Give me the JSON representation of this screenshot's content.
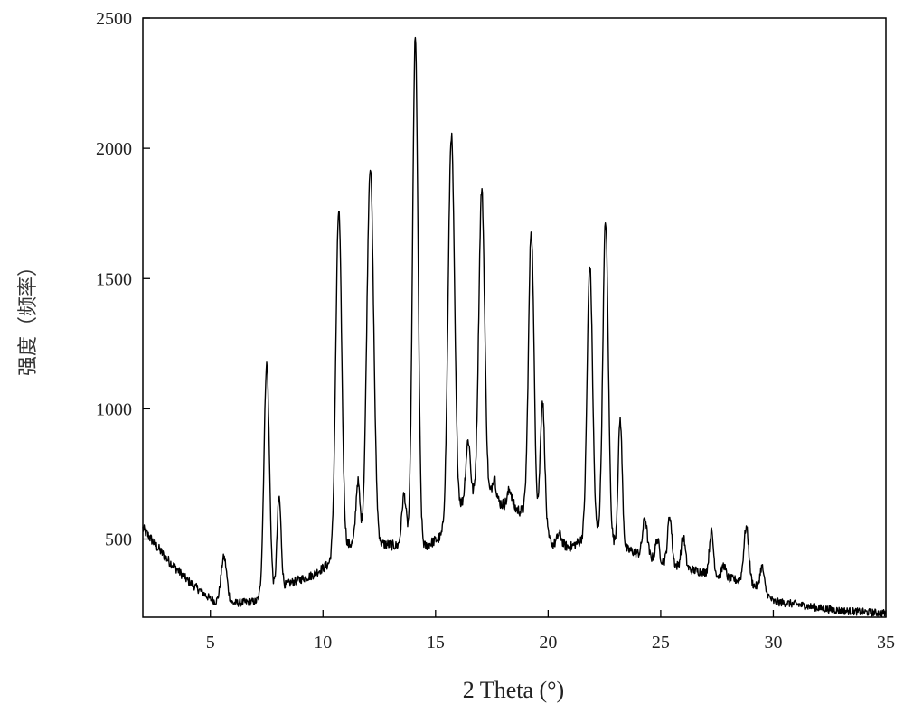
{
  "chart_data": {
    "type": "line",
    "title": "",
    "xlabel": "2 Theta (°)",
    "ylabel": "强度（频率）",
    "xlim": [
      2,
      35
    ],
    "ylim": [
      200,
      2500
    ],
    "x_ticks": [
      5,
      10,
      15,
      20,
      25,
      30,
      35
    ],
    "y_ticks": [
      500,
      1000,
      1500,
      2000,
      2500
    ],
    "grid": false,
    "legend": "none",
    "line_color": "#000000",
    "baseline_points": [
      [
        2.0,
        540
      ],
      [
        3.0,
        430
      ],
      [
        4.0,
        340
      ],
      [
        5.0,
        270
      ],
      [
        5.4,
        250
      ],
      [
        6.2,
        255
      ],
      [
        7.0,
        260
      ],
      [
        8.5,
        330
      ],
      [
        9.5,
        360
      ],
      [
        10.2,
        400
      ],
      [
        11.2,
        480
      ],
      [
        12.8,
        480
      ],
      [
        13.5,
        470
      ],
      [
        14.5,
        470
      ],
      [
        15.3,
        510
      ],
      [
        16.3,
        650
      ],
      [
        17.5,
        650
      ],
      [
        19.0,
        600
      ],
      [
        20.2,
        480
      ],
      [
        21.0,
        470
      ],
      [
        22.0,
        520
      ],
      [
        23.5,
        460
      ],
      [
        24.5,
        430
      ],
      [
        26.0,
        390
      ],
      [
        27.5,
        360
      ],
      [
        28.5,
        340
      ],
      [
        29.5,
        310
      ],
      [
        30.0,
        260
      ],
      [
        31.0,
        250
      ],
      [
        32.0,
        235
      ],
      [
        33.0,
        225
      ],
      [
        34.0,
        220
      ],
      [
        35.0,
        215
      ]
    ],
    "peaks": [
      {
        "x": 5.6,
        "y": 430,
        "width": 0.13
      },
      {
        "x": 7.5,
        "y": 1170,
        "width": 0.12
      },
      {
        "x": 8.05,
        "y": 660,
        "width": 0.09
      },
      {
        "x": 10.7,
        "y": 1760,
        "width": 0.13
      },
      {
        "x": 11.55,
        "y": 720,
        "width": 0.09
      },
      {
        "x": 12.1,
        "y": 1930,
        "width": 0.15
      },
      {
        "x": 13.6,
        "y": 670,
        "width": 0.1
      },
      {
        "x": 14.1,
        "y": 2420,
        "width": 0.12
      },
      {
        "x": 15.7,
        "y": 2050,
        "width": 0.14
      },
      {
        "x": 16.45,
        "y": 880,
        "width": 0.1
      },
      {
        "x": 17.05,
        "y": 1840,
        "width": 0.13
      },
      {
        "x": 17.6,
        "y": 740,
        "width": 0.09
      },
      {
        "x": 18.3,
        "y": 690,
        "width": 0.1
      },
      {
        "x": 19.25,
        "y": 1690,
        "width": 0.12
      },
      {
        "x": 19.75,
        "y": 1030,
        "width": 0.1
      },
      {
        "x": 20.5,
        "y": 520,
        "width": 0.1
      },
      {
        "x": 21.85,
        "y": 1550,
        "width": 0.12
      },
      {
        "x": 22.55,
        "y": 1720,
        "width": 0.12
      },
      {
        "x": 23.2,
        "y": 960,
        "width": 0.09
      },
      {
        "x": 24.3,
        "y": 580,
        "width": 0.1
      },
      {
        "x": 24.85,
        "y": 500,
        "width": 0.08
      },
      {
        "x": 25.4,
        "y": 590,
        "width": 0.09
      },
      {
        "x": 26.0,
        "y": 510,
        "width": 0.09
      },
      {
        "x": 27.25,
        "y": 530,
        "width": 0.09
      },
      {
        "x": 27.8,
        "y": 400,
        "width": 0.08
      },
      {
        "x": 28.8,
        "y": 545,
        "width": 0.11
      },
      {
        "x": 29.5,
        "y": 395,
        "width": 0.09
      }
    ]
  }
}
